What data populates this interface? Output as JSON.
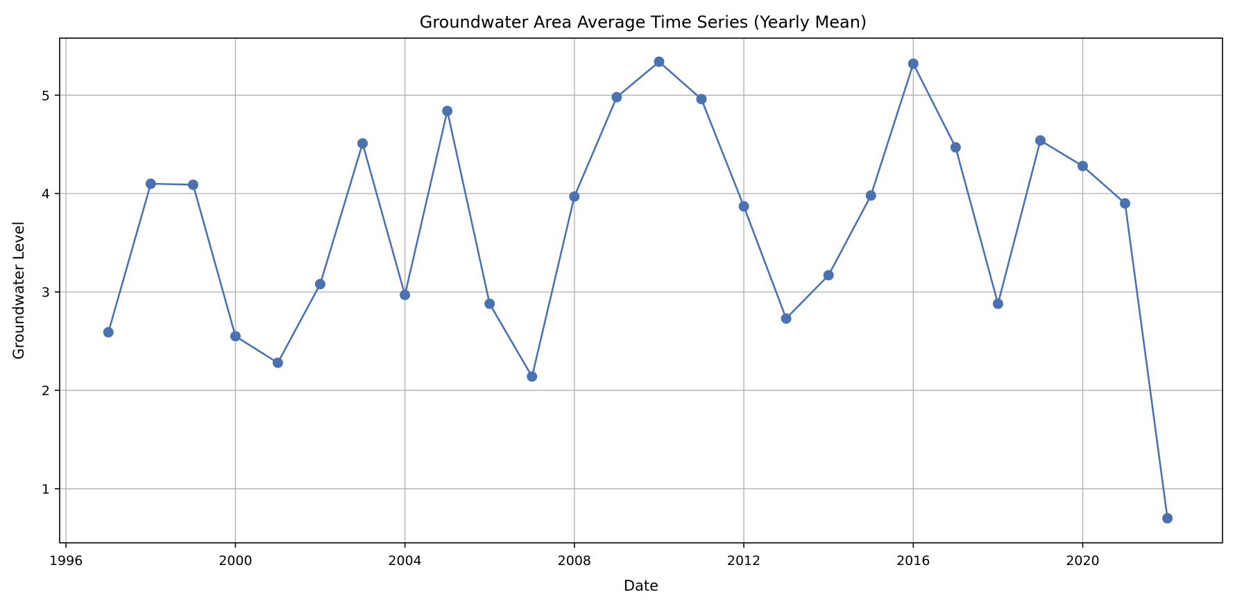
{
  "chart_data": {
    "type": "line",
    "title": "Groundwater Area Average Time Series (Yearly Mean)",
    "xlabel": "Date",
    "ylabel": "Groundwater Level",
    "grid": true,
    "legend": "none",
    "xlim": [
      1995.85,
      2023.3
    ],
    "ylim": [
      0.45,
      5.58
    ],
    "xticks": [
      1996,
      2000,
      2004,
      2008,
      2012,
      2016,
      2020
    ],
    "yticks": [
      1,
      2,
      3,
      4,
      5
    ],
    "series": [
      {
        "color": "#4a72b0",
        "marker": "circle",
        "x": [
          1997,
          1998,
          1999,
          2000,
          2001,
          2002,
          2003,
          2004,
          2005,
          2006,
          2007,
          2008,
          2009,
          2010,
          2011,
          2012,
          2013,
          2014,
          2015,
          2016,
          2017,
          2018,
          2019,
          2020,
          2021,
          2022
        ],
        "y": [
          2.59,
          4.1,
          4.09,
          2.55,
          2.28,
          3.08,
          4.51,
          2.97,
          4.84,
          2.88,
          2.14,
          3.97,
          4.98,
          5.34,
          4.96,
          3.87,
          2.73,
          3.17,
          3.98,
          5.32,
          4.47,
          2.88,
          4.54,
          4.28,
          3.9,
          0.7
        ]
      }
    ]
  }
}
